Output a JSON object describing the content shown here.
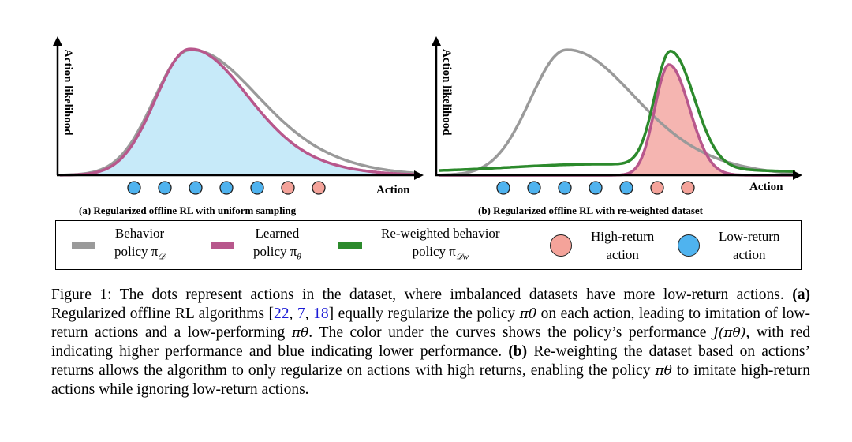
{
  "panel_a": {
    "ylabel": "Action likelihood",
    "xlabel": "Action",
    "subcaption": "(a) Regularized offline RL with uniform sampling",
    "dot_returns": [
      "low",
      "low",
      "low",
      "low",
      "low",
      "high",
      "high"
    ]
  },
  "panel_b": {
    "ylabel": "Action likelihood",
    "xlabel": "Action",
    "subcaption": "(b) Regularized offline RL with re-weighted dataset",
    "dot_returns": [
      "low",
      "low",
      "low",
      "low",
      "low",
      "high",
      "high"
    ]
  },
  "colors": {
    "behavior": "#9a9a9a",
    "learned": "#b8578c",
    "reweighted": "#2c8a2c",
    "high_return": "#f4a39a",
    "low_return": "#4fb3ef",
    "fill_low": "#c7eaf9",
    "fill_high": "#f5b5b1"
  },
  "legend": {
    "behavior_l1": "Behavior",
    "behavior_l2": "policy π",
    "behavior_sub": "𝒟",
    "learned_l1": "Learned",
    "learned_l2": "policy π",
    "learned_sub": "θ",
    "reweighted_l1": "Re-weighted behavior",
    "reweighted_l2": "policy π",
    "reweighted_sub": "𝒟w",
    "high_l1": "High-return",
    "high_l2": "action",
    "low_l1": "Low-return",
    "low_l2": "action"
  },
  "caption": {
    "s1": "Figure 1: The dots represent actions in the dataset, where imbalanced datasets have more low-return actions. ",
    "a_label": "(a)",
    "s2": " Regularized offline RL algorithms [",
    "cite1": "22",
    "c1": ", ",
    "cite2": "7",
    "c2": ", ",
    "cite3": "18",
    "s3": "] equally regularize the policy ",
    "pi_theta": "πθ",
    "s4": " on each action, leading to imitation of low-return actions and a low-performing ",
    "pi_theta2": "πθ",
    "s5": ". The color under the curves shows the policy’s performance ",
    "perf": "J(πθ)",
    "s6": ", with red indicating higher performance and blue indicating lower performance. ",
    "b_label": "(b)",
    "s7": " Re-weighting the dataset based on actions’ returns allows the algorithm to only regularize on actions with high returns, enabling the policy ",
    "pi_theta3": "πθ",
    "s8": " to imitate high-return actions while ignoring low-return actions."
  }
}
